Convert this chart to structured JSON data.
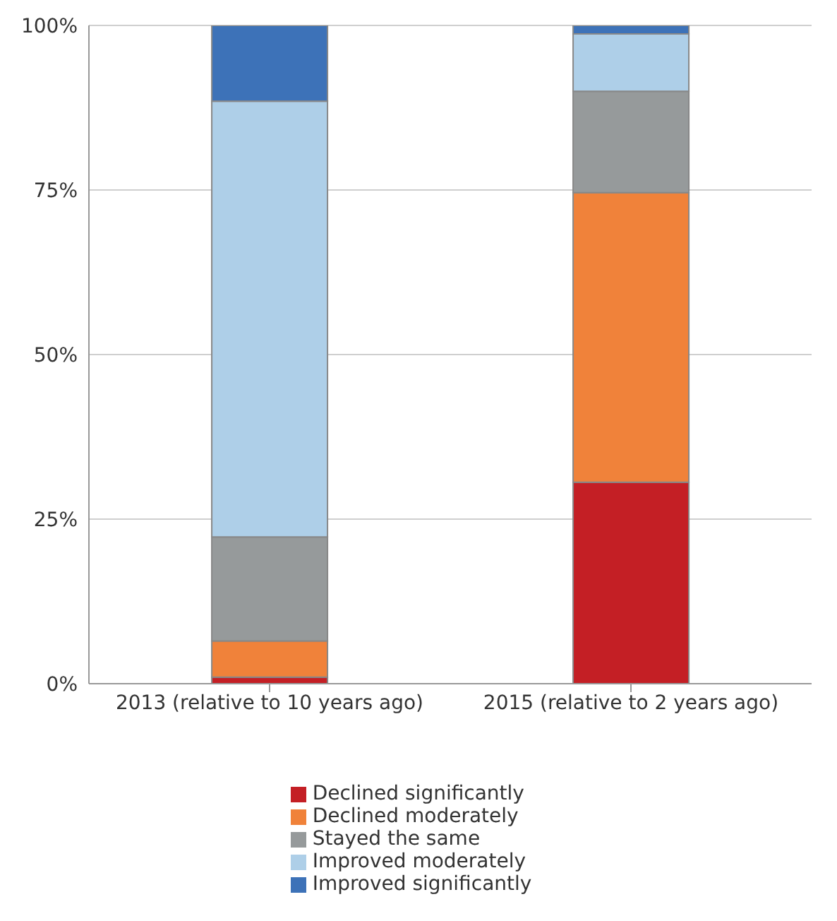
{
  "chart_data": {
    "type": "bar",
    "stacked": true,
    "categories": [
      "2013 (relative to 10 years ago)",
      "2015 (relative to 2 years ago)"
    ],
    "series": [
      {
        "name": "Declined significantly",
        "color": "#c41f25",
        "values": [
          1.0,
          30.6
        ]
      },
      {
        "name": "Declined moderately",
        "color": "#f0823a",
        "values": [
          5.5,
          44.0
        ]
      },
      {
        "name": "Stayed the same",
        "color": "#969a9b",
        "values": [
          15.8,
          15.4
        ]
      },
      {
        "name": "Improved moderately",
        "color": "#aecfe8",
        "values": [
          66.2,
          8.7
        ]
      },
      {
        "name": "Improved significantly",
        "color": "#3d72b8",
        "values": [
          11.5,
          1.3
        ]
      }
    ],
    "ylim": [
      0,
      100
    ],
    "yticks": [
      {
        "value": 0,
        "label": "0%"
      },
      {
        "value": 25,
        "label": "25%"
      },
      {
        "value": 50,
        "label": "50%"
      },
      {
        "value": 75,
        "label": "75%"
      },
      {
        "value": 100,
        "label": "100%"
      }
    ],
    "grid": "y",
    "legend": "bottom"
  }
}
